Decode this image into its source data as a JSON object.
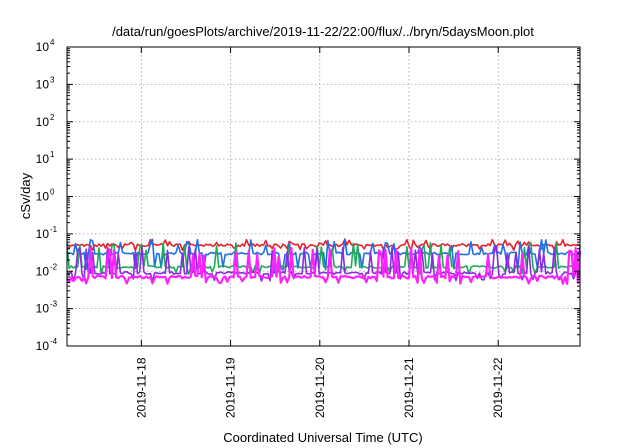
{
  "chart_data": {
    "type": "line",
    "title": "/data/run/goesPlots/archive/2019-11-22/22:00/flux/../bryn/5daysMoon.plot",
    "xlabel": "Coordinated Universal Time (UTC)",
    "ylabel": "cSv/day",
    "yscale": "log",
    "ylim": [
      0.0001,
      10000
    ],
    "yticks": [
      {
        "base": "10",
        "exp": "4"
      },
      {
        "base": "10",
        "exp": "3"
      },
      {
        "base": "10",
        "exp": "2"
      },
      {
        "base": "10",
        "exp": "1"
      },
      {
        "base": "10",
        "exp": "0"
      },
      {
        "base": "10",
        "exp": "-1"
      },
      {
        "base": "10",
        "exp": "-2"
      },
      {
        "base": "10",
        "exp": "-3"
      },
      {
        "base": "10",
        "exp": "-4"
      }
    ],
    "xlim": [
      "2019-11-17T04:00",
      "2019-11-22T22:00"
    ],
    "xticks": [
      "2019-11-18",
      "2019-11-19",
      "2019-11-20",
      "2019-11-21",
      "2019-11-22"
    ],
    "grid": true,
    "series": [
      {
        "color": "#e8202a",
        "baseline": 0.05,
        "spike": 0.065,
        "dip": 0.04
      },
      {
        "color": "#1e6fe6",
        "baseline": 0.03,
        "spike": 0.06,
        "dip": 0.012
      },
      {
        "color": "#1fa85c",
        "baseline": 0.013,
        "spike": 0.05,
        "dip": 0.009
      },
      {
        "color": "#8a2be2",
        "baseline": 0.009,
        "spike": 0.04,
        "dip": 0.006
      },
      {
        "color": "#ff22ff",
        "baseline": 0.007,
        "spike": 0.035,
        "dip": 0.005
      }
    ]
  }
}
